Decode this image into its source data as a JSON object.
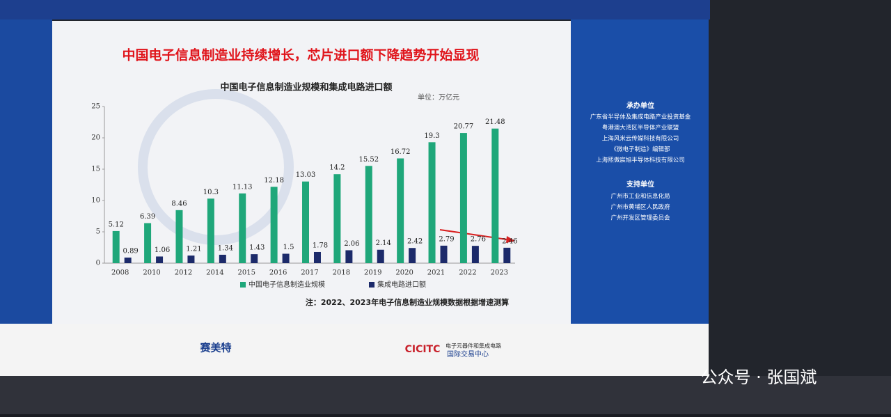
{
  "headline": "中国电子信息制造业持续增长，芯片进口额下降趋势开始显现",
  "chart_data": {
    "type": "bar",
    "title": "中国电子信息制造业规模和集成电路进口额",
    "unit": "单位：万亿元",
    "categories": [
      "2008",
      "2010",
      "2012",
      "2014",
      "2015",
      "2016",
      "2017",
      "2018",
      "2019",
      "2020",
      "2021",
      "2022",
      "2023"
    ],
    "series": [
      {
        "name": "中国电子信息制造业规模",
        "color": "#1fa77a",
        "values": [
          5.12,
          6.39,
          8.46,
          10.3,
          11.13,
          12.18,
          13.03,
          14.2,
          15.52,
          16.72,
          19.3,
          20.77,
          21.48
        ]
      },
      {
        "name": "集成电路进口额",
        "color": "#1c2a6a",
        "values": [
          0.89,
          1.06,
          1.21,
          1.34,
          1.43,
          1.5,
          1.78,
          2.06,
          2.14,
          2.42,
          2.79,
          2.76,
          2.46
        ]
      }
    ],
    "ylim": [
      0,
      25
    ],
    "yticks": [
      0,
      5,
      10,
      15,
      20,
      25
    ],
    "grid": false,
    "legend": "bottom",
    "note": "注：2022、2023年电子信息制造业规模数据根据增速测算"
  },
  "side_panel": {
    "organizers_title": "承办单位",
    "organizers": [
      "广东省半导体及集成电路产业投资基金",
      "粤港澳大湾区半导体产业联盟",
      "上海风米云传媒科技有限公司",
      "《微电子制造》编辑部",
      "上海熙傲宸旭半导体科技有限公司"
    ],
    "supporters_title": "支持单位",
    "supporters": [
      "广州市工业和信息化局",
      "广州市黄埔区人民政府",
      "广州开发区管理委员会"
    ]
  },
  "logos": [
    "赛美特",
    "CICITC",
    "电子元器件和集成电路",
    "国际交易中心"
  ],
  "watermark": "公众号 · 张国斌"
}
